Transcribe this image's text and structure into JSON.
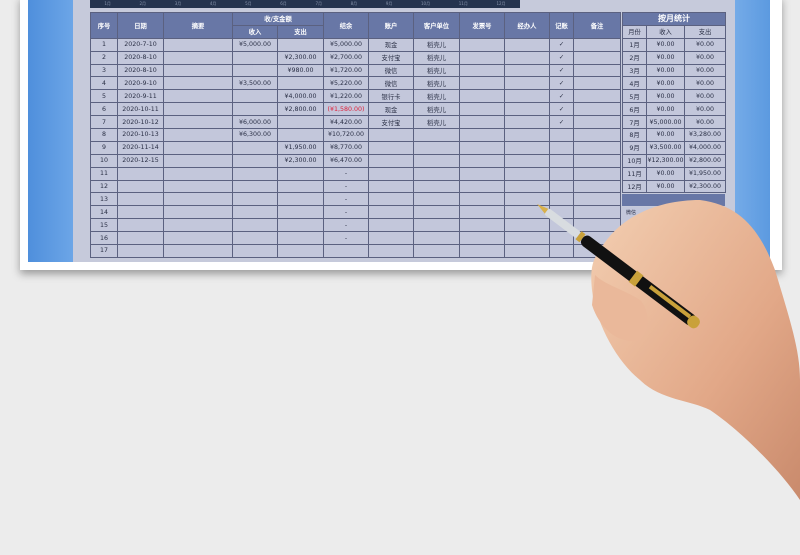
{
  "chart_strip": {
    "months": [
      "1月",
      "2月",
      "3月",
      "4月",
      "5月",
      "6月",
      "7月",
      "8月",
      "9月",
      "10月",
      "11月",
      "12月"
    ]
  },
  "ledger": {
    "headers": {
      "no": "序号",
      "date": "日期",
      "summary": "摘要",
      "amount_group": "收/支金额",
      "income": "收入",
      "expense": "支出",
      "balance": "结余",
      "account": "账户",
      "client": "客户单位",
      "invoice": "发票号",
      "handler": "经办人",
      "booked": "记账",
      "note": "备注"
    },
    "rows": [
      {
        "no": "1",
        "date": "2020-7-10",
        "income": "¥5,000.00",
        "expense": "",
        "balance": "¥5,000.00",
        "account": "现金",
        "client": "稻壳儿",
        "booked": "✓"
      },
      {
        "no": "2",
        "date": "2020-8-10",
        "income": "",
        "expense": "¥2,300.00",
        "balance": "¥2,700.00",
        "account": "支付宝",
        "client": "稻壳儿",
        "booked": "✓"
      },
      {
        "no": "3",
        "date": "2020-8-10",
        "income": "",
        "expense": "¥980.00",
        "balance": "¥1,720.00",
        "account": "微信",
        "client": "稻壳儿",
        "booked": "✓"
      },
      {
        "no": "4",
        "date": "2020-9-10",
        "income": "¥3,500.00",
        "expense": "",
        "balance": "¥5,220.00",
        "account": "微信",
        "client": "稻壳儿",
        "booked": "✓"
      },
      {
        "no": "5",
        "date": "2020-9-11",
        "income": "",
        "expense": "¥4,000.00",
        "balance": "¥1,220.00",
        "account": "银行卡",
        "client": "稻壳儿",
        "booked": "✓"
      },
      {
        "no": "6",
        "date": "2020-10-11",
        "income": "",
        "expense": "¥2,800.00",
        "balance": "(¥1,580.00)",
        "negative": true,
        "account": "现金",
        "client": "稻壳儿",
        "booked": "✓"
      },
      {
        "no": "7",
        "date": "2020-10-12",
        "income": "¥6,000.00",
        "expense": "",
        "balance": "¥4,420.00",
        "account": "支付宝",
        "client": "稻壳儿",
        "booked": "✓"
      },
      {
        "no": "8",
        "date": "2020-10-13",
        "income": "¥6,300.00",
        "expense": "",
        "balance": "¥10,720.00",
        "account": "",
        "client": "",
        "booked": ""
      },
      {
        "no": "9",
        "date": "2020-11-14",
        "income": "",
        "expense": "¥1,950.00",
        "balance": "¥8,770.00",
        "account": "",
        "client": "",
        "booked": ""
      },
      {
        "no": "10",
        "date": "2020-12-15",
        "income": "",
        "expense": "¥2,300.00",
        "balance": "¥6,470.00",
        "account": "",
        "client": "",
        "booked": ""
      },
      {
        "no": "11",
        "date": "",
        "income": "",
        "expense": "",
        "balance": "-",
        "account": "",
        "client": "",
        "booked": ""
      },
      {
        "no": "12",
        "date": "",
        "income": "",
        "expense": "",
        "balance": "-",
        "account": "",
        "client": "",
        "booked": ""
      },
      {
        "no": "13",
        "date": "",
        "income": "",
        "expense": "",
        "balance": "-",
        "account": "",
        "client": "",
        "booked": ""
      },
      {
        "no": "14",
        "date": "",
        "income": "",
        "expense": "",
        "balance": "-",
        "account": "",
        "client": "",
        "booked": ""
      },
      {
        "no": "15",
        "date": "",
        "income": "",
        "expense": "",
        "balance": "-",
        "account": "",
        "client": "",
        "booked": ""
      },
      {
        "no": "16",
        "date": "",
        "income": "",
        "expense": "",
        "balance": "-",
        "account": "",
        "client": "",
        "booked": ""
      },
      {
        "no": "17",
        "date": "",
        "income": "",
        "expense": "",
        "balance": "",
        "account": "",
        "client": "",
        "booked": ""
      }
    ]
  },
  "monthly": {
    "title": "按月统计",
    "headers": {
      "month": "月份",
      "income": "收入",
      "expense": "支出"
    },
    "rows": [
      {
        "month": "1月",
        "income": "¥0.00",
        "expense": "¥0.00"
      },
      {
        "month": "2月",
        "income": "¥0.00",
        "expense": "¥0.00"
      },
      {
        "month": "3月",
        "income": "¥0.00",
        "expense": "¥0.00"
      },
      {
        "month": "4月",
        "income": "¥0.00",
        "expense": "¥0.00"
      },
      {
        "month": "5月",
        "income": "¥0.00",
        "expense": "¥0.00"
      },
      {
        "month": "6月",
        "income": "¥0.00",
        "expense": "¥0.00"
      },
      {
        "month": "7月",
        "income": "¥5,000.00",
        "expense": "¥0.00"
      },
      {
        "month": "8月",
        "income": "¥0.00",
        "expense": "¥3,280.00"
      },
      {
        "month": "9月",
        "income": "¥3,500.00",
        "expense": "¥4,000.00"
      },
      {
        "month": "10月",
        "income": "¥12,300.00",
        "expense": "¥2,800.00"
      },
      {
        "month": "11月",
        "income": "¥0.00",
        "expense": "¥1,950.00"
      },
      {
        "month": "12月",
        "income": "¥0.00",
        "expense": "¥2,300.00"
      }
    ],
    "footer_partial": "微信"
  },
  "colors": {
    "header": "#6877a6",
    "cell": "#c3c7db",
    "negative": "#e0203a",
    "frame": "#7fb4ee",
    "band": "#25344f"
  }
}
